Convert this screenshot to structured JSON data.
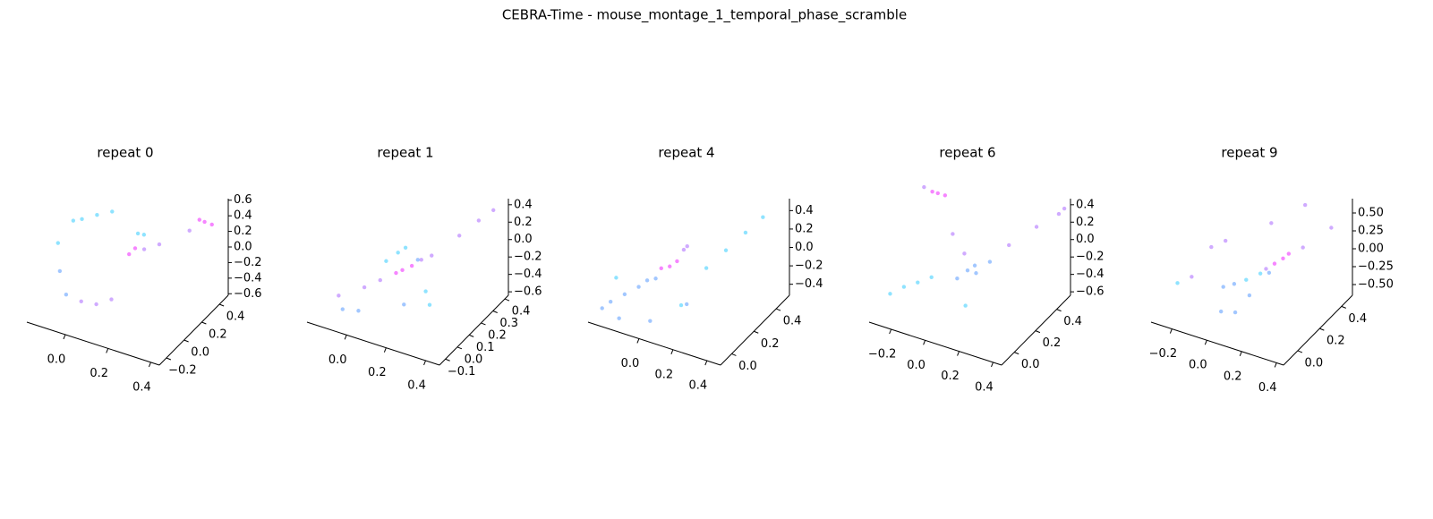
{
  "title": "CEBRA-Time - mouse_montage_1_temporal_phase_scramble",
  "chart_data": [
    {
      "type": "scatter3d",
      "title": "repeat 0",
      "xlim": [
        -0.18,
        0.44
      ],
      "ylim": [
        -0.28,
        0.5
      ],
      "zlim": [
        -0.62,
        0.62
      ],
      "xticks": [
        {
          "value": 0,
          "label": "0.0"
        },
        {
          "value": 0.2,
          "label": "0.2"
        },
        {
          "value": 0.4,
          "label": "0.4"
        }
      ],
      "yticks": [
        {
          "value": -0.2,
          "label": "−0.2"
        },
        {
          "value": 0,
          "label": "0.0"
        },
        {
          "value": 0.2,
          "label": "0.2"
        },
        {
          "value": 0.4,
          "label": "0.4"
        }
      ],
      "zticks": [
        {
          "value": 0.6,
          "label": "0.6"
        },
        {
          "value": 0.4,
          "label": "0.4"
        },
        {
          "value": 0.2,
          "label": "0.2"
        },
        {
          "value": 0,
          "label": "0.0"
        },
        {
          "value": -0.2,
          "label": "−0.2"
        },
        {
          "value": -0.4,
          "label": "−0.4"
        },
        {
          "value": -0.6,
          "label": "−0.6"
        }
      ],
      "points": {
        "x": [
          0.35,
          0.38,
          0.33,
          0.3,
          0.2,
          0.15,
          0.1,
          0.12,
          0.1,
          0.12,
          -0.12,
          -0.1,
          -0.05,
          0.0,
          -0.1,
          -0.05,
          0.0,
          0.05,
          0.1,
          -0.15
        ],
        "y": [
          0.45,
          0.46,
          0.44,
          0.4,
          0.3,
          0.25,
          0.2,
          0.22,
          0.3,
          0.32,
          0.1,
          0.15,
          0.2,
          0.25,
          -0.1,
          -0.15,
          -0.1,
          -0.05,
          0.0,
          0.0
        ],
        "z": [
          0.3,
          0.28,
          0.32,
          0.2,
          0.05,
          0.0,
          -0.05,
          0.02,
          0.1,
          0.08,
          0.3,
          0.28,
          0.32,
          0.35,
          -0.1,
          -0.3,
          -0.4,
          -0.45,
          -0.4,
          0.1
        ],
        "colors": [
          "#ee22ff",
          "#ee22ff",
          "#ee22ff",
          "#aa66ff",
          "#aa66ff",
          "#aa66ff",
          "#ee22ff",
          "#ee22ff",
          "#33ccff",
          "#33ccff",
          "#33ccff",
          "#33ccff",
          "#33ccff",
          "#33ccff",
          "#5599ff",
          "#5599ff",
          "#aa66ff",
          "#aa66ff",
          "#aa66ff",
          "#33ccff"
        ]
      }
    },
    {
      "type": "scatter3d",
      "title": "repeat 1",
      "xlim": [
        -0.2,
        0.47
      ],
      "ylim": [
        -0.15,
        0.43
      ],
      "zlim": [
        -0.64,
        0.47
      ],
      "xticks": [
        {
          "value": 0,
          "label": "0.0"
        },
        {
          "value": 0.2,
          "label": "0.2"
        },
        {
          "value": 0.4,
          "label": "0.4"
        }
      ],
      "yticks": [
        {
          "value": -0.1,
          "label": "−0.1"
        },
        {
          "value": 0,
          "label": "0.0"
        },
        {
          "value": 0.1,
          "label": "0.1"
        },
        {
          "value": 0.2,
          "label": "0.2"
        },
        {
          "value": 0.3,
          "label": "0.3"
        },
        {
          "value": 0.4,
          "label": "0.4"
        }
      ],
      "zticks": [
        {
          "value": 0.4,
          "label": "0.4"
        },
        {
          "value": 0.2,
          "label": "0.2"
        },
        {
          "value": 0,
          "label": "0.0"
        },
        {
          "value": -0.2,
          "label": "−0.2"
        },
        {
          "value": -0.4,
          "label": "−0.4"
        },
        {
          "value": -0.6,
          "label": "−0.6"
        }
      ],
      "points": {
        "x": [
          0.0,
          0.05,
          0.1,
          0.12,
          0.15,
          0.18,
          0.22,
          0.3,
          0.35,
          0.4,
          0.05,
          0.08,
          0.1,
          0.25,
          0.3,
          -0.1,
          -0.05,
          0.0,
          0.2,
          0.15
        ],
        "y": [
          0.0,
          0.05,
          0.1,
          0.12,
          0.15,
          0.18,
          0.2,
          0.3,
          0.38,
          0.42,
          0.1,
          0.15,
          0.18,
          0.1,
          0.05,
          -0.05,
          -0.1,
          -0.05,
          0.0,
          0.2
        ],
        "z": [
          -0.3,
          -0.25,
          -0.2,
          -0.18,
          -0.15,
          -0.1,
          -0.05,
          0.1,
          0.2,
          0.3,
          -0.1,
          -0.05,
          -0.02,
          -0.3,
          -0.35,
          -0.4,
          -0.45,
          -0.5,
          -0.35,
          -0.15
        ],
        "colors": [
          "#aa66ff",
          "#aa66ff",
          "#ee22ff",
          "#ee22ff",
          "#ee22ff",
          "#aa66ff",
          "#aa66ff",
          "#aa66ff",
          "#aa66ff",
          "#aa66ff",
          "#33ccff",
          "#33ccff",
          "#33ccff",
          "#33ccff",
          "#33ccff",
          "#aa66ff",
          "#5599ff",
          "#5599ff",
          "#5599ff",
          "#5599ff"
        ]
      }
    },
    {
      "type": "scatter3d",
      "title": "repeat 4",
      "xlim": [
        -0.3,
        0.48
      ],
      "ylim": [
        -0.1,
        0.52
      ],
      "zlim": [
        -0.52,
        0.53
      ],
      "xticks": [
        {
          "value": 0,
          "label": "0.0"
        },
        {
          "value": 0.2,
          "label": "0.2"
        },
        {
          "value": 0.4,
          "label": "0.4"
        }
      ],
      "yticks": [
        {
          "value": 0,
          "label": "0.0"
        },
        {
          "value": 0.2,
          "label": "0.2"
        },
        {
          "value": 0.4,
          "label": "0.4"
        }
      ],
      "zticks": [
        {
          "value": 0.4,
          "label": "0.4"
        },
        {
          "value": 0.2,
          "label": "0.2"
        },
        {
          "value": 0,
          "label": "0.0"
        },
        {
          "value": -0.2,
          "label": "−0.2"
        },
        {
          "value": -0.4,
          "label": "−0.4"
        }
      ],
      "points": {
        "x": [
          -0.2,
          -0.15,
          -0.1,
          -0.05,
          0.0,
          0.05,
          0.08,
          0.1,
          0.12,
          -0.25,
          -0.15,
          0.0,
          0.15,
          0.2,
          0.25,
          0.3,
          0.35,
          0.15,
          -0.2,
          0.0
        ],
        "y": [
          -0.05,
          0.0,
          0.05,
          0.05,
          0.1,
          0.1,
          0.12,
          0.15,
          0.15,
          -0.05,
          -0.05,
          0.0,
          0.1,
          0.2,
          0.3,
          0.4,
          0.48,
          0.05,
          0.0,
          0.05
        ],
        "z": [
          -0.3,
          -0.25,
          -0.2,
          -0.1,
          0.0,
          0.05,
          0.1,
          0.2,
          0.25,
          -0.4,
          -0.45,
          -0.45,
          -0.3,
          0.0,
          0.1,
          0.2,
          0.3,
          -0.25,
          -0.1,
          -0.05
        ],
        "colors": [
          "#5599ff",
          "#5599ff",
          "#5599ff",
          "#5599ff",
          "#ee22ff",
          "#ee22ff",
          "#ee22ff",
          "#aa66ff",
          "#aa66ff",
          "#5599ff",
          "#5599ff",
          "#5599ff",
          "#5599ff",
          "#33ccff",
          "#33ccff",
          "#33ccff",
          "#33ccff",
          "#33ccff",
          "#33ccff",
          "#5599ff"
        ]
      }
    },
    {
      "type": "scatter3d",
      "title": "repeat 6",
      "xlim": [
        -0.33,
        0.45
      ],
      "ylim": [
        -0.12,
        0.53
      ],
      "zlim": [
        -0.64,
        0.47
      ],
      "xticks": [
        {
          "value": -0.2,
          "label": "−0.2"
        },
        {
          "value": 0,
          "label": "0.0"
        },
        {
          "value": 0.2,
          "label": "0.2"
        },
        {
          "value": 0.4,
          "label": "0.4"
        }
      ],
      "yticks": [
        {
          "value": 0,
          "label": "0.0"
        },
        {
          "value": 0.2,
          "label": "0.2"
        },
        {
          "value": 0.4,
          "label": "0.4"
        }
      ],
      "zticks": [
        {
          "value": 0.4,
          "label": "0.4"
        },
        {
          "value": 0.2,
          "label": "0.2"
        },
        {
          "value": 0,
          "label": "0.0"
        },
        {
          "value": -0.2,
          "label": "−0.2"
        },
        {
          "value": -0.4,
          "label": "−0.4"
        },
        {
          "value": -0.6,
          "label": "−0.6"
        }
      ],
      "points": {
        "x": [
          -0.25,
          -0.22,
          -0.27,
          -0.3,
          0.05,
          0.08,
          0.1,
          0.02,
          0.2,
          0.3,
          0.4,
          0.42,
          -0.2,
          -0.25,
          -0.15,
          -0.1,
          -0.1,
          0.0,
          0.15,
          0.1
        ],
        "y": [
          0.4,
          0.42,
          0.38,
          0.35,
          0.2,
          0.22,
          0.2,
          0.15,
          0.35,
          0.45,
          0.5,
          0.52,
          0.0,
          -0.05,
          0.05,
          0.1,
          0.3,
          0.25,
          0.25,
          0.1
        ],
        "z": [
          0.25,
          0.22,
          0.28,
          0.35,
          -0.2,
          -0.15,
          -0.2,
          -0.25,
          0.0,
          0.15,
          0.3,
          0.35,
          -0.3,
          -0.35,
          -0.28,
          -0.25,
          0.0,
          -0.1,
          -0.1,
          -0.45
        ],
        "colors": [
          "#ee22ff",
          "#ee22ff",
          "#ee22ff",
          "#aa66ff",
          "#5599ff",
          "#5599ff",
          "#5599ff",
          "#5599ff",
          "#aa66ff",
          "#aa66ff",
          "#aa66ff",
          "#aa66ff",
          "#33ccff",
          "#33ccff",
          "#33ccff",
          "#33ccff",
          "#aa66ff",
          "#aa66ff",
          "#5599ff",
          "#33ccff"
        ]
      }
    },
    {
      "type": "scatter3d",
      "title": "repeat 9",
      "xlim": [
        -0.32,
        0.44
      ],
      "ylim": [
        -0.13,
        0.5
      ],
      "zlim": [
        -0.65,
        0.7
      ],
      "xticks": [
        {
          "value": -0.2,
          "label": "−0.2"
        },
        {
          "value": 0,
          "label": "0.0"
        },
        {
          "value": 0.2,
          "label": "0.2"
        },
        {
          "value": 0.4,
          "label": "0.4"
        }
      ],
      "yticks": [
        {
          "value": 0,
          "label": "0.0"
        },
        {
          "value": 0.2,
          "label": "0.2"
        },
        {
          "value": 0.4,
          "label": "0.4"
        }
      ],
      "zticks": [
        {
          "value": 0.5,
          "label": "0.50"
        },
        {
          "value": 0.25,
          "label": "0.25"
        },
        {
          "value": 0,
          "label": "0.00"
        },
        {
          "value": -0.25,
          "label": "−0.25"
        },
        {
          "value": -0.5,
          "label": "−0.50"
        }
      ],
      "points": {
        "x": [
          -0.05,
          0.0,
          0.05,
          0.1,
          0.15,
          0.18,
          0.2,
          0.12,
          0.25,
          0.35,
          -0.15,
          -0.1,
          -0.2,
          0.0,
          0.05,
          0.1,
          0.2,
          -0.25,
          0.1,
          0.15
        ],
        "y": [
          0.1,
          0.12,
          0.15,
          0.2,
          0.25,
          0.28,
          0.3,
          0.22,
          0.35,
          0.45,
          0.15,
          0.2,
          0.05,
          0.0,
          0.05,
          0.3,
          0.45,
          0.0,
          0.1,
          0.2
        ],
        "z": [
          -0.3,
          -0.25,
          -0.2,
          -0.15,
          -0.05,
          0.0,
          0.05,
          -0.1,
          0.1,
          0.3,
          0.1,
          0.15,
          -0.2,
          -0.45,
          -0.5,
          0.4,
          0.5,
          -0.25,
          -0.3,
          -0.1
        ],
        "colors": [
          "#5599ff",
          "#5599ff",
          "#33ccff",
          "#33ccff",
          "#ee22ff",
          "#ee22ff",
          "#ee22ff",
          "#aa66ff",
          "#aa66ff",
          "#aa66ff",
          "#aa66ff",
          "#aa66ff",
          "#aa66ff",
          "#5599ff",
          "#5599ff",
          "#aa66ff",
          "#aa66ff",
          "#33ccff",
          "#5599ff",
          "#5599ff"
        ]
      }
    }
  ]
}
